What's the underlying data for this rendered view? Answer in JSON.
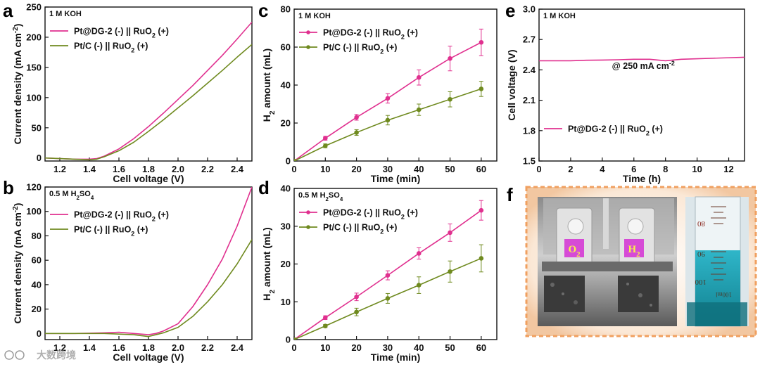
{
  "colors": {
    "pt_dg2": "#e0308f",
    "pt_c": "#6f8a1f",
    "axis": "#111111",
    "photo_border": "#f0a060"
  },
  "watermark": "大数跨境",
  "chart_data": [
    {
      "panel": "a",
      "type": "line",
      "condition": "1 M KOH",
      "xlabel": "Cell voltage (V)",
      "ylabel": "Current density (mA cm⁻²)",
      "xlim": [
        1.1,
        2.5
      ],
      "ylim": [
        -5,
        250
      ],
      "xticks": [
        1.2,
        1.4,
        1.6,
        1.8,
        2.0,
        2.2,
        2.4
      ],
      "yticks": [
        0,
        50,
        100,
        150,
        200,
        250
      ],
      "legend_position": "top-left",
      "series": [
        {
          "name": "Pt@DG-2 (-) || RuO₂ (+)",
          "key": "pt_dg2",
          "points": [
            [
              1.1,
              0
            ],
            [
              1.2,
              -1
            ],
            [
              1.3,
              -2
            ],
            [
              1.4,
              -2
            ],
            [
              1.45,
              -1
            ],
            [
              1.5,
              3
            ],
            [
              1.6,
              15
            ],
            [
              1.7,
              32
            ],
            [
              1.8,
              52
            ],
            [
              1.9,
              74
            ],
            [
              2.0,
              97
            ],
            [
              2.1,
              120
            ],
            [
              2.2,
              145
            ],
            [
              2.3,
              170
            ],
            [
              2.4,
              197
            ],
            [
              2.5,
              225
            ]
          ]
        },
        {
          "name": "Pt/C (-) || RuO₂ (+)",
          "key": "pt_c",
          "points": [
            [
              1.1,
              0
            ],
            [
              1.2,
              -1
            ],
            [
              1.3,
              -2
            ],
            [
              1.4,
              -3
            ],
            [
              1.45,
              -2
            ],
            [
              1.5,
              2
            ],
            [
              1.6,
              12
            ],
            [
              1.7,
              26
            ],
            [
              1.8,
              44
            ],
            [
              1.9,
              63
            ],
            [
              2.0,
              83
            ],
            [
              2.1,
              103
            ],
            [
              2.2,
              124
            ],
            [
              2.3,
              145
            ],
            [
              2.4,
              167
            ],
            [
              2.5,
              188
            ]
          ]
        }
      ]
    },
    {
      "panel": "b",
      "type": "line",
      "condition": "0.5 M H₂SO₄",
      "xlabel": "Cell voltage (V)",
      "ylabel": "Current density (mA cm⁻²)",
      "xlim": [
        1.1,
        2.5
      ],
      "ylim": [
        -5,
        120
      ],
      "xticks": [
        1.2,
        1.4,
        1.6,
        1.8,
        2.0,
        2.2,
        2.4
      ],
      "yticks": [
        0,
        20,
        40,
        60,
        80,
        100,
        120
      ],
      "legend_position": "top-left",
      "series": [
        {
          "name": "Pt@DG-2 (-) || RuO₂ (+)",
          "key": "pt_dg2",
          "points": [
            [
              1.1,
              0
            ],
            [
              1.3,
              0
            ],
            [
              1.5,
              0.5
            ],
            [
              1.6,
              1
            ],
            [
              1.7,
              0
            ],
            [
              1.8,
              -1
            ],
            [
              1.85,
              0
            ],
            [
              1.9,
              2
            ],
            [
              2.0,
              8
            ],
            [
              2.1,
              22
            ],
            [
              2.2,
              40
            ],
            [
              2.3,
              61
            ],
            [
              2.4,
              88
            ],
            [
              2.5,
              120
            ]
          ]
        },
        {
          "name": "Pt/C (-) || RuO₂ (+)",
          "key": "pt_c",
          "points": [
            [
              1.1,
              0
            ],
            [
              1.3,
              0
            ],
            [
              1.5,
              0
            ],
            [
              1.6,
              -0.5
            ],
            [
              1.7,
              -1
            ],
            [
              1.8,
              -2.5
            ],
            [
              1.85,
              -1
            ],
            [
              1.9,
              0.5
            ],
            [
              2.0,
              5
            ],
            [
              2.1,
              14
            ],
            [
              2.2,
              26
            ],
            [
              2.3,
              40
            ],
            [
              2.4,
              57
            ],
            [
              2.5,
              77
            ]
          ]
        }
      ]
    },
    {
      "panel": "c",
      "type": "line",
      "condition": "1 M KOH",
      "xlabel": "Time (min)",
      "ylabel": "H₂ amount (mL)",
      "xlim": [
        0,
        65
      ],
      "ylim": [
        0,
        80
      ],
      "xticks": [
        0,
        10,
        20,
        30,
        40,
        50,
        60
      ],
      "yticks": [
        0,
        20,
        40,
        60,
        80
      ],
      "legend_position": "top-left",
      "series": [
        {
          "name": "Pt@DG-2 (-) || RuO₂ (+)",
          "key": "pt_dg2",
          "x": [
            0,
            10,
            20,
            30,
            40,
            50,
            60
          ],
          "y": [
            0,
            12,
            23,
            33,
            44,
            54,
            62.5
          ],
          "err": [
            0,
            1.0,
            1.5,
            2.5,
            4.0,
            6.5,
            7.0
          ]
        },
        {
          "name": "Pt/C (-) || RuO₂ (+)",
          "key": "pt_c",
          "x": [
            0,
            10,
            20,
            30,
            40,
            50,
            60
          ],
          "y": [
            0,
            8,
            15,
            21.5,
            27,
            32.5,
            38
          ],
          "err": [
            0,
            1.0,
            1.5,
            2.5,
            3.0,
            4.0,
            4.0
          ]
        }
      ]
    },
    {
      "panel": "d",
      "type": "line",
      "condition": "0.5 M H₂SO₄",
      "xlabel": "Time (min)",
      "ylabel": "H₂ amount (mL)",
      "xlim": [
        0,
        65
      ],
      "ylim": [
        0,
        40
      ],
      "xticks": [
        0,
        10,
        20,
        30,
        40,
        50,
        60
      ],
      "yticks": [
        0,
        10,
        20,
        30,
        40
      ],
      "legend_position": "top-left",
      "series": [
        {
          "name": "Pt@DG-2 (-) || RuO₂ (+)",
          "key": "pt_dg2",
          "x": [
            0,
            10,
            20,
            30,
            40,
            50,
            60
          ],
          "y": [
            0,
            5.8,
            11.3,
            17,
            22.8,
            28.3,
            34.2
          ],
          "err": [
            0,
            0.5,
            1.0,
            1.2,
            1.5,
            2.3,
            2.6
          ]
        },
        {
          "name": "Pt/C (-) || RuO₂ (+)",
          "key": "pt_c",
          "x": [
            0,
            10,
            20,
            30,
            40,
            50,
            60
          ],
          "y": [
            0,
            3.6,
            7.3,
            10.9,
            14.4,
            18.0,
            21.5
          ],
          "err": [
            0,
            0.4,
            1.0,
            1.3,
            2.2,
            2.8,
            3.6
          ]
        }
      ]
    },
    {
      "panel": "e",
      "type": "line",
      "condition": "1 M KOH",
      "xlabel": "Time (h)",
      "ylabel": "Cell voltage (V)",
      "xlim": [
        0,
        13
      ],
      "ylim": [
        1.5,
        3.0
      ],
      "xticks": [
        0,
        2,
        4,
        6,
        8,
        10,
        12
      ],
      "yticks": [
        1.5,
        1.8,
        2.1,
        2.4,
        2.7,
        3.0
      ],
      "annotation": "@ 250 mA cm⁻²",
      "legend_position": "bottom-left",
      "series": [
        {
          "name": "Pt@DG-2 (-) || RuO₂ (+)",
          "key": "pt_dg2",
          "points": [
            [
              0,
              2.49
            ],
            [
              1,
              2.49
            ],
            [
              2,
              2.49
            ],
            [
              3,
              2.495
            ],
            [
              4,
              2.497
            ],
            [
              5,
              2.5
            ],
            [
              6,
              2.505
            ],
            [
              7,
              2.505
            ],
            [
              8,
              2.49
            ],
            [
              9,
              2.505
            ],
            [
              10,
              2.51
            ],
            [
              11,
              2.515
            ],
            [
              12,
              2.52
            ],
            [
              13,
              2.525
            ]
          ]
        }
      ]
    }
  ],
  "photo": {
    "panel": "f",
    "electrode_labels": [
      "O₂",
      "H₂"
    ],
    "cylinder_marks": [
      "80",
      "90",
      "100",
      "100ml"
    ]
  }
}
